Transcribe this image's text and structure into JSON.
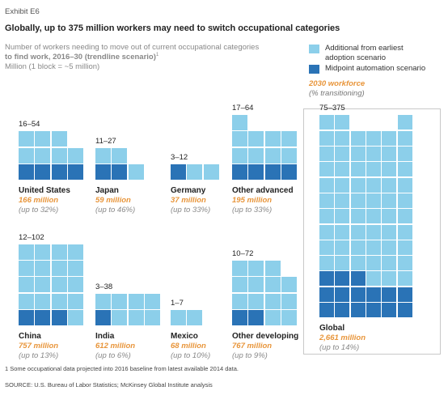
{
  "exhibit": "Exhibit E6",
  "headline": "Globally, up to 375 million workers may need to switch occupational categories",
  "subtitle": {
    "line1": "Number of workers needing to move out of current occupational categories",
    "line2_bold": "to find work, 2016–30 (trendline scenario)",
    "line2_sup": "1",
    "line3": "Million (1 block = ~5 million)"
  },
  "legend": {
    "items": [
      {
        "label_line1": "Additional from earliest",
        "label_line2": "adoption scenario",
        "color": "#8ccfea"
      },
      {
        "label_line1": "Midpoint automation scenario",
        "label_line2": "",
        "color": "#2a73b6"
      }
    ],
    "workforce_title": "2030 workforce",
    "workforce_sub": "(% transitioning)"
  },
  "colors": {
    "light": "#8ccfea",
    "dark": "#2a73b6",
    "accent": "#e8953a"
  },
  "chart_data": {
    "type": "waffle",
    "unit": "1 block = ~5 million",
    "series": [
      {
        "name": "Midpoint automation scenario"
      },
      {
        "name": "Additional from earliest adoption scenario"
      }
    ],
    "countries": [
      {
        "name": "United States",
        "range": "16–54",
        "workforce": "166 million",
        "pct": "(up to 32%)",
        "dark_blocks": 4,
        "total_blocks": 11
      },
      {
        "name": "Japan",
        "range": "11–27",
        "workforce": "59 million",
        "pct": "(up to 46%)",
        "dark_blocks": 2,
        "total_blocks": 5
      },
      {
        "name": "Germany",
        "range": "3–12",
        "workforce": "37 million",
        "pct": "(up to 33%)",
        "dark_blocks": 1,
        "total_blocks": 3
      },
      {
        "name": "Other advanced",
        "range": "17–64",
        "workforce": "195 million",
        "pct": "(up to 33%)",
        "dark_blocks": 4,
        "total_blocks": 13
      },
      {
        "name": "China",
        "range": "12–102",
        "workforce": "757 million",
        "pct": "(up to 13%)",
        "dark_blocks": 3,
        "total_blocks": 20
      },
      {
        "name": "India",
        "range": "3–38",
        "workforce": "612 million",
        "pct": "(up to 6%)",
        "dark_blocks": 1,
        "total_blocks": 8
      },
      {
        "name": "Mexico",
        "range": "1–7",
        "workforce": "68 million",
        "pct": "(up to 10%)",
        "dark_blocks": 0,
        "total_blocks": 2
      },
      {
        "name": "Other developing",
        "range": "10–72",
        "workforce": "767 million",
        "pct": "(up to 9%)",
        "dark_blocks": 2,
        "total_blocks": 15
      },
      {
        "name": "Global",
        "range": "75–375",
        "workforce": "2,661 million",
        "pct": "(up to 14%)",
        "dark_blocks": 15,
        "total_blocks": 75
      }
    ]
  },
  "footnote": "1  Some occupational data projected into 2016 baseline from latest available 2014 data.",
  "source": "SOURCE:  U.S. Bureau of Labor Statistics; McKinsey Global Institute analysis"
}
